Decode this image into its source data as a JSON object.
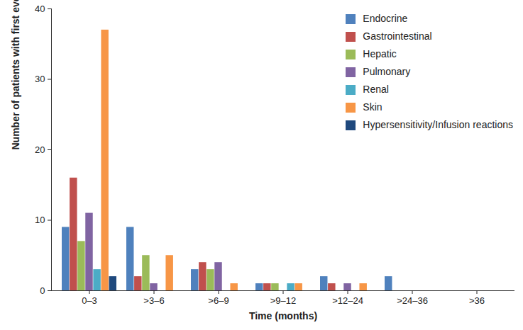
{
  "chart_data": {
    "type": "bar",
    "categories": [
      "0–3",
      ">3–6",
      ">6–9",
      ">9–12",
      ">12–24",
      ">24–36",
      ">36"
    ],
    "x_label": "Time (months)",
    "y_label": "Number of patients with first event in a category",
    "series": [
      {
        "name": "Endocrine",
        "color": "#4f81bd",
        "values": [
          9,
          9,
          3,
          1,
          2,
          2,
          0
        ]
      },
      {
        "name": "Gastrointestinal",
        "color": "#c0504d",
        "values": [
          16,
          2,
          4,
          1,
          1,
          0,
          0
        ]
      },
      {
        "name": "Hepatic",
        "color": "#9bbb59",
        "values": [
          7,
          5,
          3,
          1,
          0,
          0,
          0
        ]
      },
      {
        "name": "Pulmonary",
        "color": "#8064a2",
        "values": [
          11,
          1,
          4,
          0,
          1,
          0,
          0
        ]
      },
      {
        "name": "Renal",
        "color": "#4bacc6",
        "values": [
          3,
          0,
          0,
          1,
          0,
          0,
          0
        ]
      },
      {
        "name": "Skin",
        "color": "#f79646",
        "values": [
          37,
          5,
          1,
          1,
          1,
          0,
          0
        ]
      },
      {
        "name": "Hypersensitivity/Infusion reactions",
        "color": "#1f497d",
        "values": [
          2,
          0,
          0,
          0,
          0,
          0,
          0
        ]
      }
    ],
    "ylim": [
      0,
      40
    ],
    "yticks": [
      0,
      10,
      20,
      30,
      40
    ],
    "grid": false,
    "legend": "top-right"
  }
}
